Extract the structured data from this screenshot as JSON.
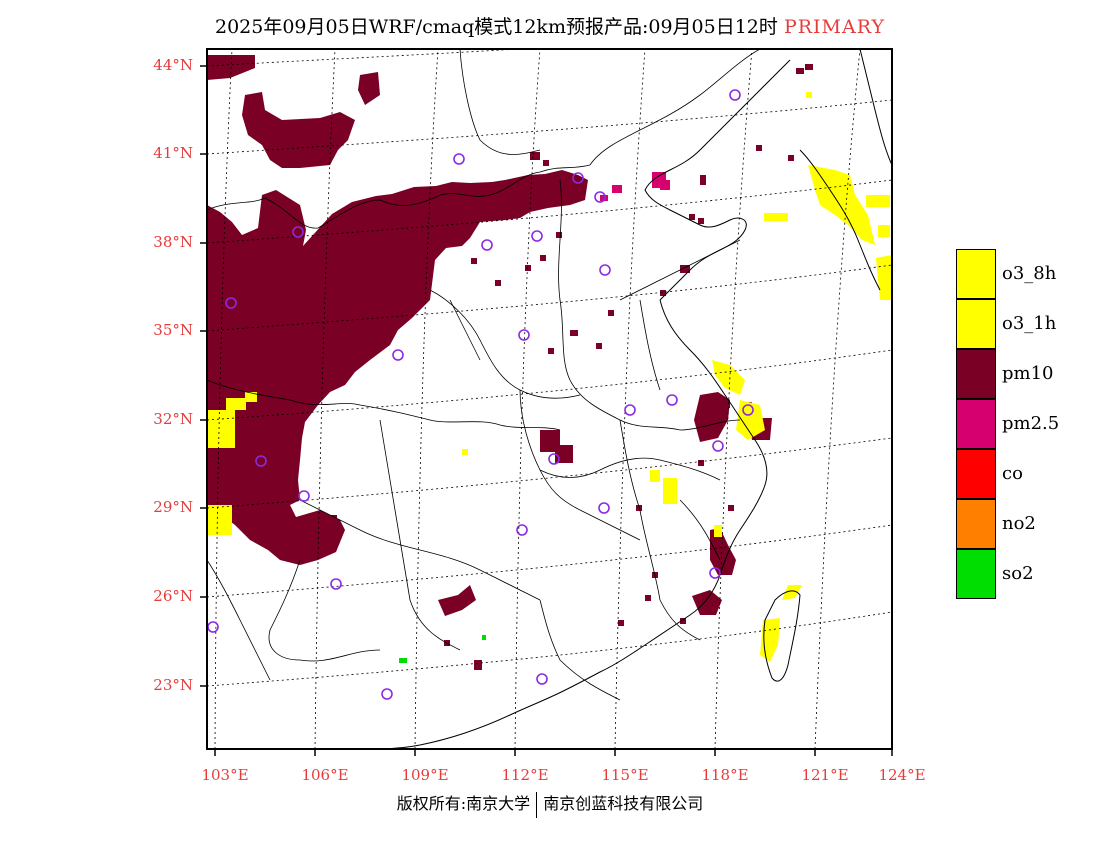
{
  "header": {
    "title": "2025年09月05日WRF/cmaq模式12km预报产品:09月05日12时",
    "field": "PRIMARY"
  },
  "map": {
    "lat_labels": [
      "44°N",
      "41°N",
      "38°N",
      "35°N",
      "32°N",
      "29°N",
      "26°N",
      "23°N"
    ],
    "lon_labels": [
      "103°E",
      "106°E",
      "109°E",
      "112°E",
      "115°E",
      "118°E",
      "121°E",
      "124°E"
    ]
  },
  "legend": {
    "items": [
      {
        "label": "o3_8h",
        "color": "#ffff00"
      },
      {
        "label": "o3_1h",
        "color": "#ffff00"
      },
      {
        "label": "pm10",
        "color": "#7a0026"
      },
      {
        "label": "pm2.5",
        "color": "#d6006e"
      },
      {
        "label": "co",
        "color": "#ff0000"
      },
      {
        "label": "no2",
        "color": "#ff7f00"
      },
      {
        "label": "so2",
        "color": "#00dd00"
      }
    ]
  },
  "footer": {
    "left": "版权所有:南京大学",
    "right": "南京创蓝科技有限公司"
  }
}
